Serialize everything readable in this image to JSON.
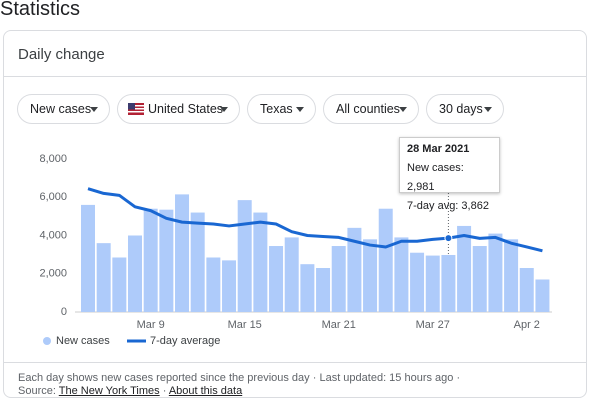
{
  "header": {
    "title": "Statistics"
  },
  "card": {
    "title": "Daily change",
    "filters": [
      "New cases",
      "United States",
      "Texas",
      "All counties",
      "30 days"
    ],
    "footer": {
      "note": "Each day shows new cases reported since the previous day",
      "updated": "Last updated: 15 hours ago",
      "source_label": "Source:",
      "source": "The New York Times",
      "about": "About this data"
    }
  },
  "chart_data": {
    "type": "bar",
    "categories": [
      null,
      null,
      null,
      null,
      "Mar 9",
      null,
      null,
      null,
      null,
      null,
      "Mar 15",
      null,
      null,
      null,
      null,
      null,
      "Mar 21",
      null,
      null,
      null,
      null,
      null,
      "Mar 27",
      null,
      null,
      null,
      null,
      null,
      "Apr 2",
      null
    ],
    "series": [
      {
        "name": "New cases",
        "type": "bar",
        "color": "#aecbfa",
        "values": [
          5600,
          3600,
          2850,
          4000,
          5400,
          5350,
          6150,
          5200,
          2850,
          2700,
          5850,
          5200,
          3450,
          3900,
          2500,
          2300,
          3450,
          4400,
          3800,
          5400,
          3900,
          3100,
          2950,
          2981,
          4500,
          3450,
          4100,
          3800,
          2300,
          1700
        ]
      },
      {
        "name": "7-day average",
        "type": "line",
        "color": "#1967d2",
        "values": [
          6450,
          6200,
          6100,
          5500,
          5300,
          4900,
          4700,
          4650,
          4600,
          4500,
          4600,
          4700,
          4600,
          4200,
          4000,
          3950,
          3900,
          3700,
          3500,
          3400,
          3700,
          3700,
          3800,
          3862,
          4000,
          3850,
          3900,
          3600,
          3400,
          3200
        ]
      }
    ],
    "ylim": [
      0,
      8000
    ],
    "yticks": [
      0,
      {
        "value": 2000,
        "label": "2,000"
      },
      {
        "value": 4000,
        "label": "4,000"
      },
      {
        "value": 6000,
        "label": "6,000"
      },
      {
        "value": 8000,
        "label": "8,000"
      }
    ],
    "grid": false,
    "tooltip": {
      "title": "28 Mar 2021",
      "lines": [
        "New cases: 2,981",
        "7-day avg: 3,862"
      ]
    }
  }
}
